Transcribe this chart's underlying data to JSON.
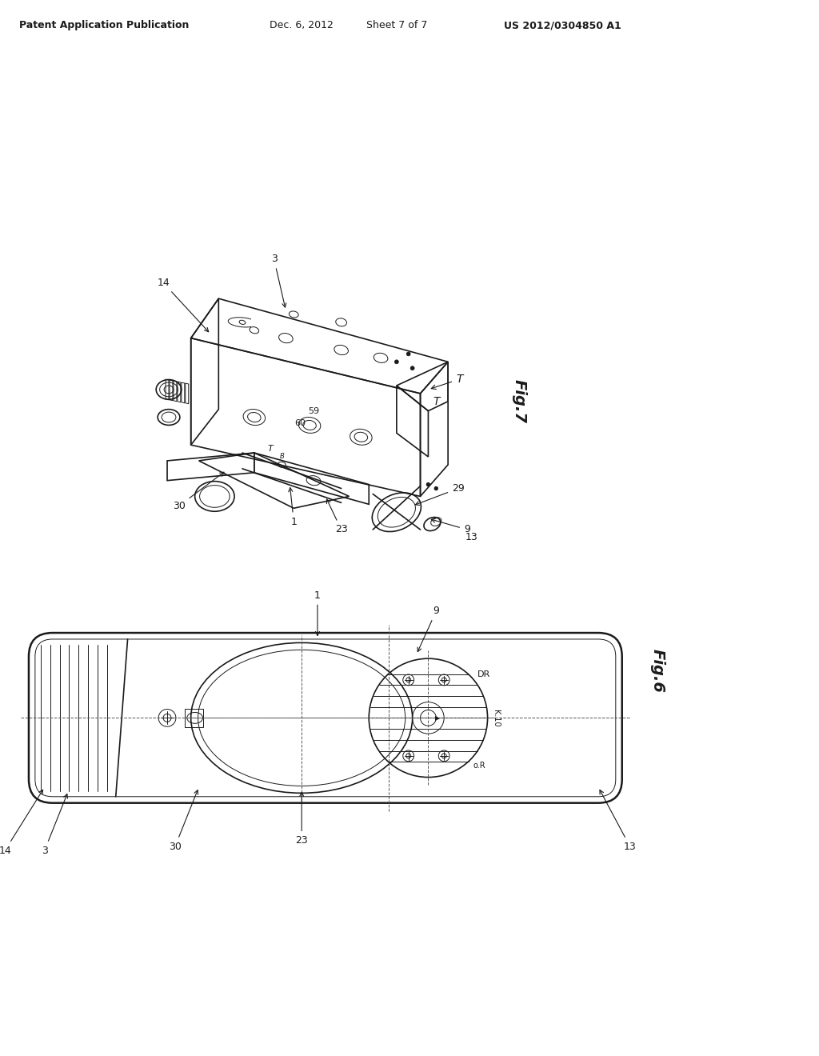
{
  "bg_color": "#ffffff",
  "header_text": "Patent Application Publication",
  "header_date": "Dec. 6, 2012",
  "header_sheet": "Sheet 7 of 7",
  "header_patent": "US 2012/0304850 A1",
  "fig7_label": "Fig.7",
  "fig6_label": "Fig.6",
  "line_color": "#1a1a1a",
  "light_gray": "#888888",
  "mid_gray": "#555555"
}
